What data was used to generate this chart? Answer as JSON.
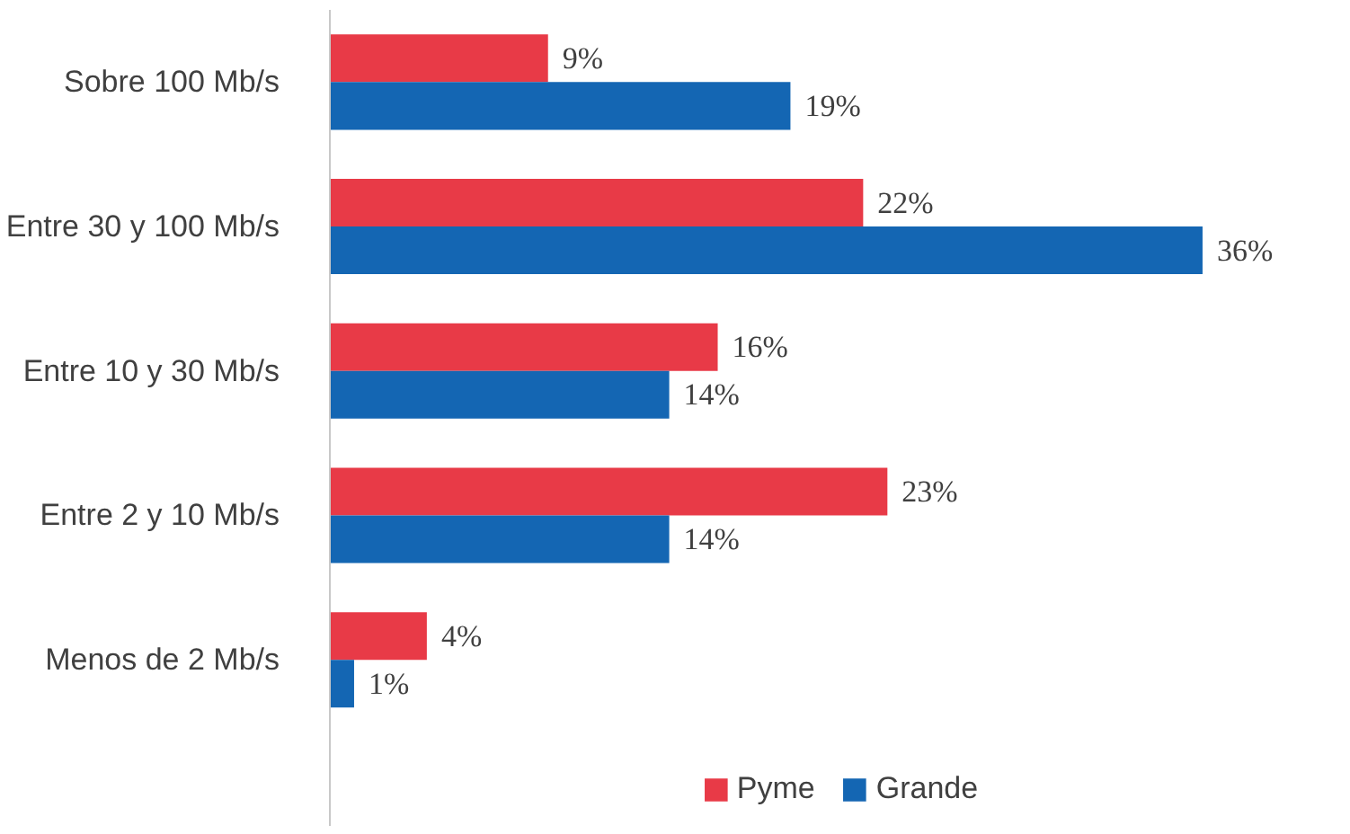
{
  "chart_data": {
    "type": "bar",
    "orientation": "horizontal",
    "categories": [
      "Sobre 100 Mb/s",
      "Entre 30 y 100 Mb/s",
      "Entre 10 y 30 Mb/s",
      "Entre 2 y 10 Mb/s",
      "Menos de 2 Mb/s"
    ],
    "series": [
      {
        "name": "Pyme",
        "color": "#e83a47",
        "values": [
          9,
          22,
          16,
          23,
          4
        ],
        "value_labels": [
          "9%",
          "22%",
          "16%",
          "23%",
          "4%"
        ]
      },
      {
        "name": "Grande",
        "color": "#1466b3",
        "values": [
          19,
          36,
          14,
          14,
          1
        ],
        "value_labels": [
          "19%",
          "36%",
          "14%",
          "14%",
          "1%"
        ]
      }
    ],
    "legend": "bottom",
    "grid": false
  }
}
